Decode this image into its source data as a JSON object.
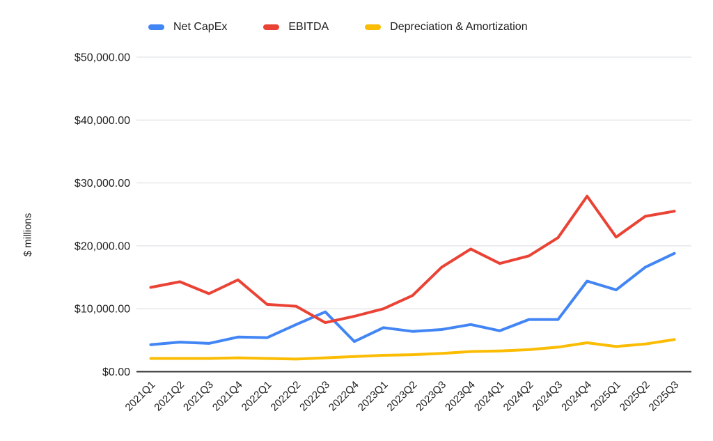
{
  "page": {
    "background": "#ffffff",
    "gridline_color": "#dadce0",
    "axis_line_color": "#333333",
    "label_color": "#1f1f1f"
  },
  "legend": {
    "items": [
      {
        "label": "Net CapEx",
        "color": "#4285F4"
      },
      {
        "label": "EBITDA",
        "color": "#EA4335"
      },
      {
        "label": "Depreciation & Amortization",
        "color": "#FBBC04"
      }
    ]
  },
  "chart_data": {
    "type": "line",
    "title": "",
    "xlabel": "",
    "ylabel": "$ millions",
    "ylim": [
      0,
      50000
    ],
    "ytick_step": 10000,
    "ytick_labels": [
      "$0.00",
      "$10,000.00",
      "$20,000.00",
      "$30,000.00",
      "$40,000.00",
      "$50,000.00"
    ],
    "grid": true,
    "legend_position": "top",
    "categories": [
      "2021Q1",
      "2021Q2",
      "2021Q3",
      "2021Q4",
      "2022Q1",
      "2022Q2",
      "2022Q3",
      "2022Q4",
      "2023Q1",
      "2023Q2",
      "2023Q3",
      "2023Q4",
      "2024Q1",
      "2024Q2",
      "2024Q3",
      "2024Q4",
      "2025Q1",
      "2025Q2",
      "2025Q3"
    ],
    "series": [
      {
        "name": "Net CapEx",
        "color": "#4285F4",
        "values": [
          4300,
          4700,
          4500,
          5500,
          5400,
          7500,
          9500,
          4800,
          7000,
          6400,
          6700,
          7500,
          6500,
          8300,
          8300,
          14400,
          13000,
          16600,
          18800
        ]
      },
      {
        "name": "EBITDA",
        "color": "#EA4335",
        "values": [
          13400,
          14300,
          12400,
          14600,
          10700,
          10400,
          7800,
          8800,
          10000,
          12100,
          16600,
          19500,
          17200,
          18400,
          21300,
          27900,
          21400,
          24700,
          25500
        ]
      },
      {
        "name": "Depreciation & Amortization",
        "color": "#FBBC04",
        "values": [
          2100,
          2100,
          2100,
          2200,
          2100,
          2000,
          2200,
          2400,
          2600,
          2700,
          2900,
          3200,
          3300,
          3500,
          3900,
          4600,
          4000,
          4400,
          5100
        ]
      }
    ]
  }
}
